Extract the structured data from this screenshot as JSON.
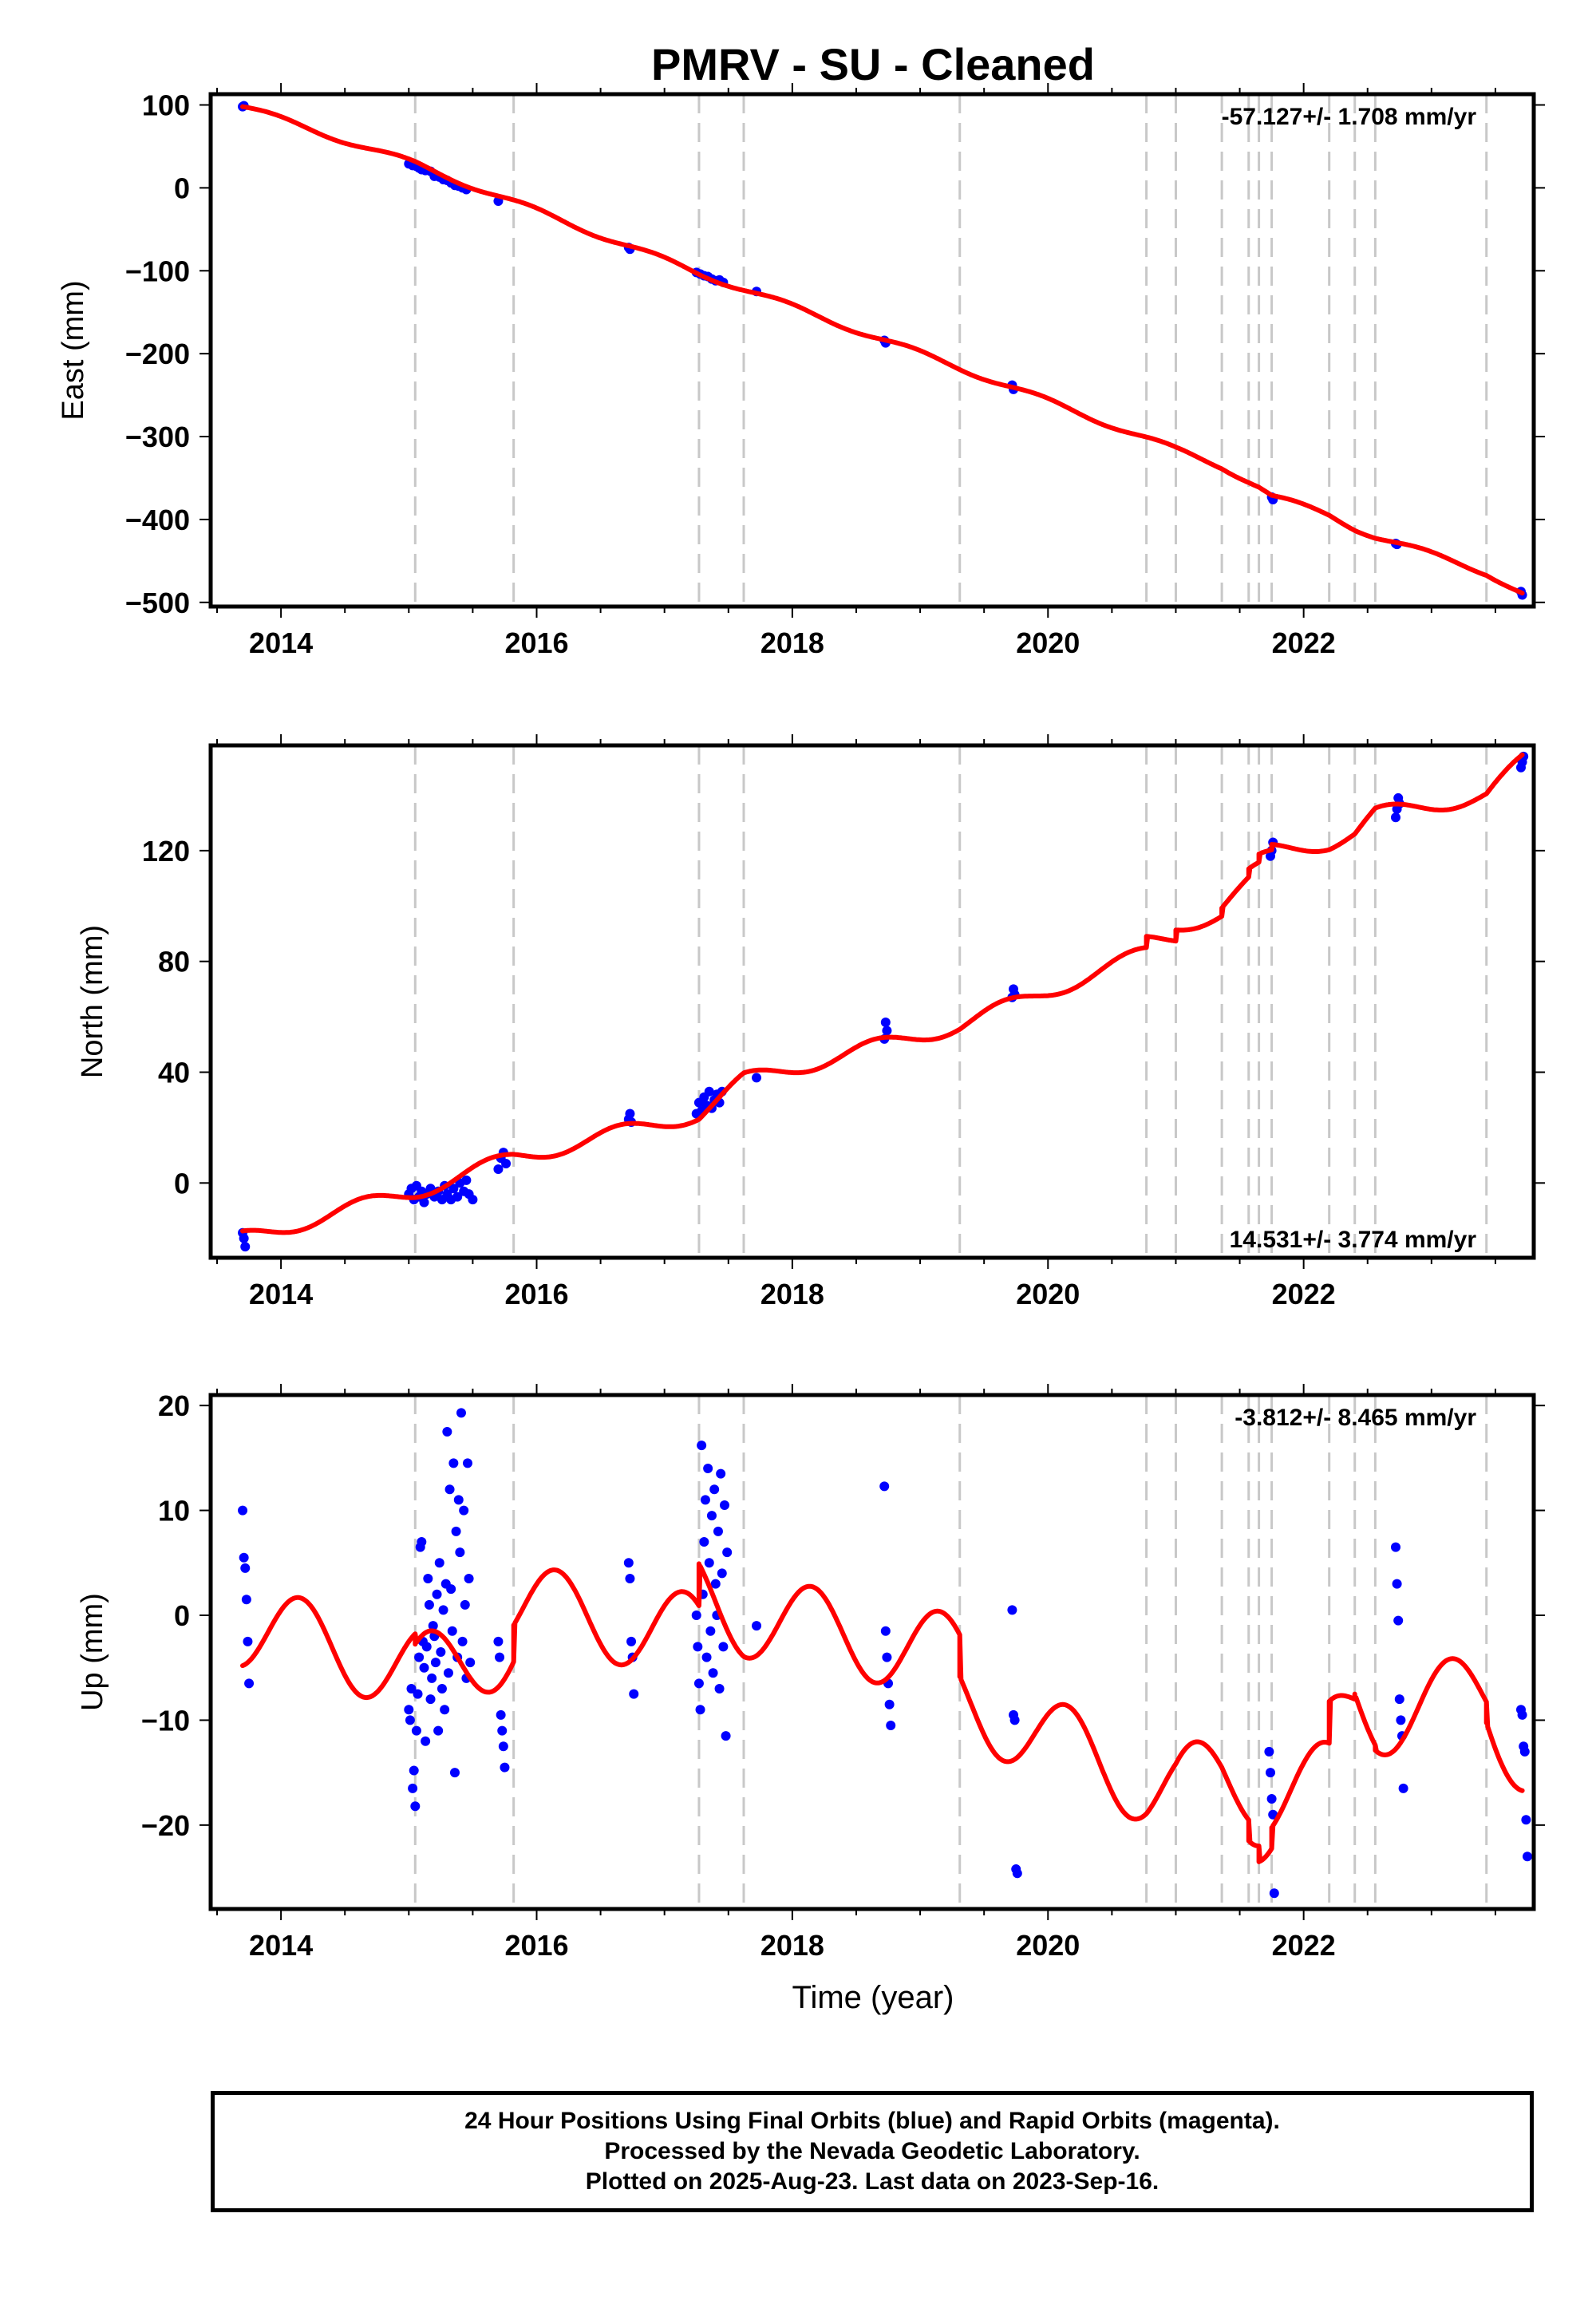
{
  "title": "PMRV  - SU - Cleaned",
  "xlabel": "Time (year)",
  "footer": {
    "line1": "24 Hour Positions Using Final Orbits (blue) and Rapid Orbits (magenta).",
    "line2": "Processed by the Nevada Geodetic Laboratory.",
    "line3": "Plotted on 2025-Aug-23. Last data on 2023-Sep-16."
  },
  "colors": {
    "points": "#0000ff",
    "model": "#ff0000",
    "events": "#c8c8c8",
    "frame": "#000000"
  },
  "chart_data": [
    {
      "type": "scatter",
      "panel": "east",
      "ylabel": "East (mm)",
      "rate_text": "-57.127+/- 1.708 mm/yr",
      "xlim": [
        2013.45,
        2023.8
      ],
      "ylim": [
        -505,
        113
      ],
      "xticks": [
        2014,
        2016,
        2018,
        2020,
        2022
      ],
      "yticks": [
        100,
        0,
        -100,
        -200,
        -300,
        -400,
        -500
      ],
      "ytick_labels": [
        "100",
        "0",
        "−100",
        "−200",
        "−300",
        "−400",
        "−500"
      ],
      "events": [
        2015.05,
        2015.82,
        2017.27,
        2017.62,
        2019.31,
        2020.77,
        2021.0,
        2021.36,
        2021.57,
        2021.65,
        2021.75,
        2022.2,
        2022.4,
        2022.56,
        2023.43
      ],
      "points": [
        [
          2013.7,
          98
        ],
        [
          2013.71,
          99
        ],
        [
          2015.0,
          29
        ],
        [
          2015.03,
          27
        ],
        [
          2015.06,
          26
        ],
        [
          2015.08,
          24
        ],
        [
          2015.1,
          22
        ],
        [
          2015.13,
          21
        ],
        [
          2015.17,
          20
        ],
        [
          2015.2,
          14
        ],
        [
          2015.24,
          13
        ],
        [
          2015.27,
          10
        ],
        [
          2015.3,
          9
        ],
        [
          2015.33,
          6
        ],
        [
          2015.36,
          3
        ],
        [
          2015.39,
          2
        ],
        [
          2015.42,
          0
        ],
        [
          2015.45,
          -2
        ],
        [
          2015.7,
          -16
        ],
        [
          2016.72,
          -72
        ],
        [
          2016.73,
          -74
        ],
        [
          2017.25,
          -102
        ],
        [
          2017.28,
          -104
        ],
        [
          2017.31,
          -106
        ],
        [
          2017.34,
          -107
        ],
        [
          2017.37,
          -110
        ],
        [
          2017.4,
          -112
        ],
        [
          2017.43,
          -111
        ],
        [
          2017.46,
          -114
        ],
        [
          2017.72,
          -125
        ],
        [
          2018.72,
          -184
        ],
        [
          2018.73,
          -187
        ],
        [
          2019.72,
          -238
        ],
        [
          2019.73,
          -243
        ],
        [
          2021.75,
          -373
        ],
        [
          2021.76,
          -376
        ],
        [
          2022.72,
          -429
        ],
        [
          2022.73,
          -430
        ],
        [
          2023.7,
          -487
        ],
        [
          2023.71,
          -491
        ]
      ],
      "model": {
        "knots": [
          [
            2013.7,
            98
          ],
          [
            2015.05,
            29
          ],
          [
            2015.82,
            -17
          ],
          [
            2017.27,
            -103
          ],
          [
            2017.62,
            -122
          ],
          [
            2019.31,
            -217
          ],
          [
            2020.77,
            -302
          ],
          [
            2021.0,
            -316
          ],
          [
            2021.36,
            -336
          ],
          [
            2021.57,
            -353
          ],
          [
            2021.65,
            -360
          ],
          [
            2021.75,
            -372
          ],
          [
            2022.2,
            -395
          ],
          [
            2022.4,
            -410
          ],
          [
            2022.56,
            -420
          ],
          [
            2023.43,
            -464
          ],
          [
            2023.71,
            -489
          ]
        ],
        "annual_amp": 3.5,
        "phase": 0.3
      }
    },
    {
      "type": "scatter",
      "panel": "north",
      "ylabel": "North (mm)",
      "rate_text": "14.531+/- 3.774 mm/yr",
      "xlim": [
        2013.45,
        2023.8
      ],
      "ylim": [
        -27,
        158
      ],
      "xticks": [
        2014,
        2016,
        2018,
        2020,
        2022
      ],
      "yticks": [
        0,
        40,
        80,
        120
      ],
      "ytick_labels": [
        "0",
        "40",
        "80",
        "120"
      ],
      "events": [
        2015.05,
        2015.82,
        2017.27,
        2017.62,
        2019.31,
        2020.77,
        2021.0,
        2021.36,
        2021.57,
        2021.65,
        2021.75,
        2022.2,
        2022.4,
        2022.56,
        2023.43
      ],
      "points": [
        [
          2013.7,
          -18
        ],
        [
          2013.71,
          -20
        ],
        [
          2013.72,
          -23
        ],
        [
          2015.0,
          -4
        ],
        [
          2015.02,
          -2
        ],
        [
          2015.04,
          -6
        ],
        [
          2015.06,
          -1
        ],
        [
          2015.08,
          -5
        ],
        [
          2015.1,
          -3
        ],
        [
          2015.12,
          -7
        ],
        [
          2015.14,
          -4
        ],
        [
          2015.17,
          -2
        ],
        [
          2015.2,
          -5
        ],
        [
          2015.23,
          -3
        ],
        [
          2015.26,
          -6
        ],
        [
          2015.28,
          -1
        ],
        [
          2015.3,
          -4
        ],
        [
          2015.33,
          -6
        ],
        [
          2015.35,
          -2
        ],
        [
          2015.38,
          -5
        ],
        [
          2015.4,
          0
        ],
        [
          2015.43,
          -3
        ],
        [
          2015.45,
          1
        ],
        [
          2015.47,
          -4
        ],
        [
          2015.5,
          -6
        ],
        [
          2015.7,
          5
        ],
        [
          2015.72,
          9
        ],
        [
          2015.74,
          11
        ],
        [
          2015.76,
          7
        ],
        [
          2016.72,
          23
        ],
        [
          2016.73,
          25
        ],
        [
          2016.74,
          22
        ],
        [
          2017.25,
          25
        ],
        [
          2017.27,
          29
        ],
        [
          2017.29,
          26
        ],
        [
          2017.31,
          31
        ],
        [
          2017.33,
          28
        ],
        [
          2017.35,
          33
        ],
        [
          2017.37,
          27
        ],
        [
          2017.39,
          30
        ],
        [
          2017.41,
          32
        ],
        [
          2017.43,
          29
        ],
        [
          2017.45,
          33
        ],
        [
          2017.72,
          38
        ],
        [
          2018.72,
          52
        ],
        [
          2018.73,
          58
        ],
        [
          2018.74,
          55
        ],
        [
          2019.72,
          67
        ],
        [
          2019.73,
          70
        ],
        [
          2019.74,
          68
        ],
        [
          2021.74,
          118
        ],
        [
          2021.75,
          120
        ],
        [
          2021.76,
          123
        ],
        [
          2022.72,
          132
        ],
        [
          2022.73,
          135
        ],
        [
          2022.74,
          139
        ],
        [
          2022.75,
          137
        ],
        [
          2023.7,
          150
        ],
        [
          2023.71,
          152
        ],
        [
          2023.72,
          154
        ]
      ],
      "model": {
        "knots": [
          [
            2013.7,
            -20
          ],
          [
            2015.05,
            -3
          ],
          [
            2015.82,
            9
          ],
          [
            2017.27,
            25
          ],
          [
            2017.62,
            37
          ],
          [
            2019.31,
            57
          ],
          [
            2020.77,
            83
          ],
          [
            2020.77,
            87
          ],
          [
            2021.0,
            89
          ],
          [
            2021.0,
            93
          ],
          [
            2021.36,
            97
          ],
          [
            2021.36,
            100
          ],
          [
            2021.57,
            108
          ],
          [
            2021.57,
            111
          ],
          [
            2021.65,
            113
          ],
          [
            2021.65,
            116
          ],
          [
            2021.75,
            118
          ],
          [
            2021.75,
            120
          ],
          [
            2022.2,
            123
          ],
          [
            2022.4,
            126
          ],
          [
            2022.56,
            133
          ],
          [
            2023.43,
            140
          ],
          [
            2023.71,
            152
          ]
        ],
        "annual_amp": 2.8,
        "phase": 0.6
      }
    },
    {
      "type": "scatter",
      "panel": "up",
      "ylabel": "Up (mm)",
      "rate_text": "-3.812+/- 8.465 mm/yr",
      "xlim": [
        2013.45,
        2023.8
      ],
      "ylim": [
        -28,
        21
      ],
      "xticks": [
        2014,
        2016,
        2018,
        2020,
        2022
      ],
      "yticks": [
        20,
        10,
        0,
        -10,
        -20
      ],
      "ytick_labels": [
        "20",
        "10",
        "0",
        "−10",
        "−20"
      ],
      "events": [
        2015.05,
        2015.82,
        2017.27,
        2017.62,
        2019.31,
        2020.77,
        2021.0,
        2021.36,
        2021.57,
        2021.65,
        2021.75,
        2022.2,
        2022.4,
        2022.56,
        2023.43
      ],
      "points": [
        [
          2013.7,
          10
        ],
        [
          2013.71,
          5.5
        ],
        [
          2013.72,
          4.5
        ],
        [
          2013.73,
          1.5
        ],
        [
          2013.74,
          -2.5
        ],
        [
          2013.75,
          -6.5
        ],
        [
          2015.0,
          -9
        ],
        [
          2015.01,
          -10
        ],
        [
          2015.02,
          -7
        ],
        [
          2015.03,
          -16.5
        ],
        [
          2015.04,
          -14.8
        ],
        [
          2015.05,
          -18.2
        ],
        [
          2015.06,
          -11
        ],
        [
          2015.07,
          -7.5
        ],
        [
          2015.08,
          -4
        ],
        [
          2015.09,
          6.5
        ],
        [
          2015.1,
          7
        ],
        [
          2015.11,
          -2.5
        ],
        [
          2015.12,
          -5
        ],
        [
          2015.13,
          -12
        ],
        [
          2015.14,
          -3
        ],
        [
          2015.15,
          3.5
        ],
        [
          2015.16,
          1
        ],
        [
          2015.17,
          -8
        ],
        [
          2015.18,
          -6
        ],
        [
          2015.19,
          -1
        ],
        [
          2015.2,
          -2
        ],
        [
          2015.21,
          -4.5
        ],
        [
          2015.22,
          2
        ],
        [
          2015.23,
          -11
        ],
        [
          2015.24,
          5
        ],
        [
          2015.25,
          -3.5
        ],
        [
          2015.26,
          -7
        ],
        [
          2015.27,
          0.5
        ],
        [
          2015.28,
          -9
        ],
        [
          2015.29,
          3
        ],
        [
          2015.3,
          17.5
        ],
        [
          2015.31,
          -5.5
        ],
        [
          2015.32,
          12
        ],
        [
          2015.33,
          2.5
        ],
        [
          2015.34,
          -1.5
        ],
        [
          2015.35,
          14.5
        ],
        [
          2015.36,
          -15
        ],
        [
          2015.37,
          8
        ],
        [
          2015.38,
          -4
        ],
        [
          2015.39,
          11
        ],
        [
          2015.4,
          6
        ],
        [
          2015.41,
          19.3
        ],
        [
          2015.42,
          -2.5
        ],
        [
          2015.43,
          10
        ],
        [
          2015.44,
          1
        ],
        [
          2015.45,
          -6
        ],
        [
          2015.46,
          14.5
        ],
        [
          2015.47,
          3.5
        ],
        [
          2015.48,
          -4.5
        ],
        [
          2015.7,
          -2.5
        ],
        [
          2015.71,
          -4
        ],
        [
          2015.72,
          -9.5
        ],
        [
          2015.73,
          -11
        ],
        [
          2015.74,
          -12.5
        ],
        [
          2015.75,
          -14.5
        ],
        [
          2016.72,
          5
        ],
        [
          2016.73,
          3.5
        ],
        [
          2016.74,
          -2.5
        ],
        [
          2016.75,
          -4
        ],
        [
          2016.76,
          -7.5
        ],
        [
          2017.25,
          0
        ],
        [
          2017.26,
          -3
        ],
        [
          2017.27,
          -6.5
        ],
        [
          2017.28,
          -9
        ],
        [
          2017.29,
          16.2
        ],
        [
          2017.3,
          2
        ],
        [
          2017.31,
          7
        ],
        [
          2017.32,
          11
        ],
        [
          2017.33,
          -4
        ],
        [
          2017.34,
          14
        ],
        [
          2017.35,
          5
        ],
        [
          2017.36,
          -1.5
        ],
        [
          2017.37,
          9.5
        ],
        [
          2017.38,
          -5.5
        ],
        [
          2017.39,
          12
        ],
        [
          2017.4,
          3
        ],
        [
          2017.41,
          0
        ],
        [
          2017.42,
          8
        ],
        [
          2017.43,
          -7
        ],
        [
          2017.44,
          13.5
        ],
        [
          2017.45,
          4
        ],
        [
          2017.46,
          -3
        ],
        [
          2017.47,
          10.5
        ],
        [
          2017.48,
          -11.5
        ],
        [
          2017.49,
          6
        ],
        [
          2017.72,
          -1
        ],
        [
          2018.72,
          12.3
        ],
        [
          2018.73,
          -1.5
        ],
        [
          2018.74,
          -4
        ],
        [
          2018.75,
          -6.5
        ],
        [
          2018.76,
          -8.5
        ],
        [
          2018.77,
          -10.5
        ],
        [
          2019.72,
          0.5
        ],
        [
          2019.73,
          -9.5
        ],
        [
          2019.74,
          -10
        ],
        [
          2019.75,
          -24.2
        ],
        [
          2019.76,
          -24.6
        ],
        [
          2021.73,
          -13
        ],
        [
          2021.74,
          -15
        ],
        [
          2021.75,
          -17.5
        ],
        [
          2021.76,
          -19
        ],
        [
          2021.77,
          -26.5
        ],
        [
          2022.72,
          6.5
        ],
        [
          2022.73,
          3
        ],
        [
          2022.74,
          -0.5
        ],
        [
          2022.75,
          -8
        ],
        [
          2022.76,
          -10
        ],
        [
          2022.77,
          -11.5
        ],
        [
          2022.78,
          -16.5
        ],
        [
          2023.7,
          -9
        ],
        [
          2023.71,
          -9.5
        ],
        [
          2023.72,
          -12.5
        ],
        [
          2023.73,
          -13
        ],
        [
          2023.74,
          -19.5
        ],
        [
          2023.75,
          -23
        ]
      ],
      "model": {
        "knots": [
          [
            2013.7,
            -1
          ],
          [
            2015.05,
            -5
          ],
          [
            2015.05,
            -6
          ],
          [
            2015.82,
            -2.5
          ],
          [
            2015.82,
            1
          ],
          [
            2017.27,
            -2
          ],
          [
            2017.27,
            2
          ],
          [
            2017.62,
            0
          ],
          [
            2019.31,
            -4
          ],
          [
            2019.31,
            -8
          ],
          [
            2020.77,
            -16
          ],
          [
            2021.0,
            -16.5
          ],
          [
            2021.36,
            -15.5
          ],
          [
            2021.57,
            -16
          ],
          [
            2021.57,
            -18
          ],
          [
            2021.65,
            -18
          ],
          [
            2021.65,
            -19.5
          ],
          [
            2021.75,
            -19
          ],
          [
            2021.75,
            -17
          ],
          [
            2022.2,
            -16
          ],
          [
            2022.2,
            -12
          ],
          [
            2022.4,
            -8
          ],
          [
            2022.4,
            -7.5
          ],
          [
            2022.56,
            -9
          ],
          [
            2022.56,
            -9.5
          ],
          [
            2023.43,
            -7.5
          ],
          [
            2023.43,
            -9.5
          ],
          [
            2023.71,
            -13
          ]
        ],
        "annual_amp": 4.0,
        "phase": 0.1
      }
    }
  ]
}
